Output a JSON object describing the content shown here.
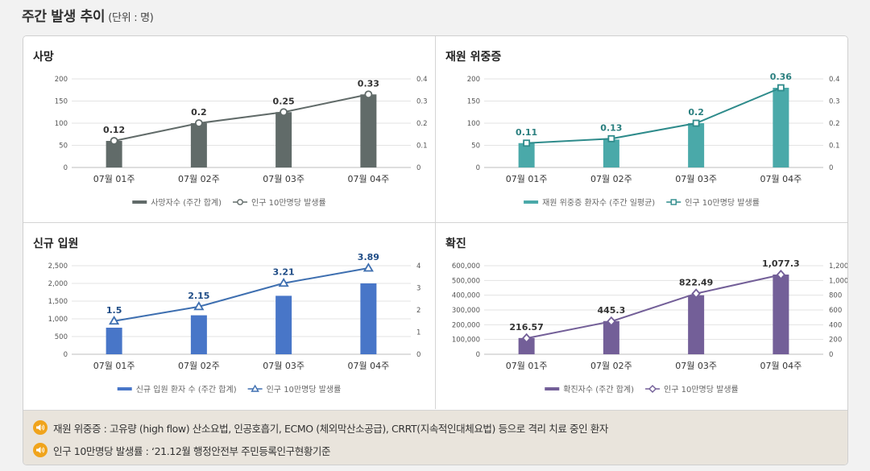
{
  "page": {
    "title": "주간 발생 추이",
    "unit": "(단위 : 명)"
  },
  "chart_data": [
    {
      "id": "deaths",
      "title": "사망",
      "type": "bar+line",
      "categories": [
        "07월 01주",
        "07월 02주",
        "07월 03주",
        "07월 04주"
      ],
      "bar": {
        "name": "사망자수 (주간 합계)",
        "values": [
          60,
          100,
          125,
          165
        ],
        "color": "#616b69"
      },
      "line": {
        "name": "인구 10만명당 발생률",
        "values": [
          0.12,
          0.2,
          0.25,
          0.33
        ],
        "labels": [
          "0.12",
          "0.2",
          "0.25",
          "0.33"
        ],
        "color": "#616b69",
        "label_color": "#333333",
        "marker": "circle"
      },
      "y_left": {
        "min": 0,
        "max": 200,
        "ticks": [
          "0",
          "50",
          "100",
          "150",
          "200"
        ]
      },
      "y_right": {
        "min": 0,
        "max": 0.4,
        "ticks": [
          "0",
          "0.1",
          "0.2",
          "0.3",
          "0.4"
        ]
      },
      "grid": true
    },
    {
      "id": "severe",
      "title": "재원 위중증",
      "type": "bar+line",
      "categories": [
        "07월 01주",
        "07월 02주",
        "07월 03주",
        "07월 04주"
      ],
      "bar": {
        "name": "재원 위중증 환자수 (주간 일평균)",
        "values": [
          55,
          63,
          100,
          180
        ],
        "color": "#4aa9a9"
      },
      "line": {
        "name": "인구 10만명당 발생률",
        "values": [
          0.11,
          0.13,
          0.2,
          0.36
        ],
        "labels": [
          "0.11",
          "0.13",
          "0.2",
          "0.36"
        ],
        "color": "#2e8b8b",
        "label_color": "#2a7f7f",
        "marker": "square"
      },
      "y_left": {
        "min": 0,
        "max": 200,
        "ticks": [
          "0",
          "50",
          "100",
          "150",
          "200"
        ]
      },
      "y_right": {
        "min": 0,
        "max": 0.4,
        "ticks": [
          "0",
          "0.1",
          "0.2",
          "0.3",
          "0.4"
        ]
      },
      "grid": true
    },
    {
      "id": "admissions",
      "title": "신규 입원",
      "type": "bar+line",
      "categories": [
        "07월 01주",
        "07월 02주",
        "07월 03주",
        "07월 04주"
      ],
      "bar": {
        "name": "신규 입원 환자 수 (주간 합계)",
        "values": [
          750,
          1100,
          1650,
          2000
        ],
        "color": "#4876c8"
      },
      "line": {
        "name": "인구 10만명당 발생률",
        "values": [
          1.5,
          2.15,
          3.21,
          3.89
        ],
        "labels": [
          "1.5",
          "2.15",
          "3.21",
          "3.89"
        ],
        "color": "#3e6fb0",
        "label_color": "#1f4c86",
        "marker": "triangle"
      },
      "y_left": {
        "min": 0,
        "max": 2500,
        "ticks": [
          "0",
          "500",
          "1,000",
          "1,500",
          "2,000",
          "2,500"
        ]
      },
      "y_right": {
        "min": 0,
        "max": 4,
        "ticks": [
          "0",
          "1",
          "2",
          "3",
          "4"
        ]
      },
      "grid": true
    },
    {
      "id": "confirmed",
      "title": "확진",
      "type": "bar+line",
      "categories": [
        "07월 01주",
        "07월 02주",
        "07월 03주",
        "07월 04주"
      ],
      "bar": {
        "name": "확진자수 (주간 합계)",
        "values": [
          110000,
          225000,
          400000,
          540000
        ],
        "color": "#735f98"
      },
      "line": {
        "name": "인구 10만명당 발생률",
        "values": [
          216.57,
          445.3,
          822.49,
          1077.3
        ],
        "labels": [
          "216.57",
          "445.3",
          "822.49",
          "1,077.3"
        ],
        "color": "#735f98",
        "label_color": "#333333",
        "marker": "diamond"
      },
      "y_left": {
        "min": 0,
        "max": 600000,
        "ticks": [
          "0",
          "100,000",
          "200,000",
          "300,000",
          "400,000",
          "500,000",
          "600,000"
        ]
      },
      "y_right": {
        "min": 0,
        "max": 1200,
        "ticks": [
          "0",
          "200",
          "400",
          "600",
          "800",
          "1,000",
          "1,200"
        ]
      },
      "grid": true
    }
  ],
  "notes": [
    {
      "icon": "speaker-icon",
      "text": "재원 위중증 : 고유량 (high flow) 산소요법, 인공호흡기, ECMO (체외막산소공급), CRRT(지속적인대체요법) 등으로 격리 치료 중인 환자"
    },
    {
      "icon": "speaker-icon",
      "text": "인구 10만명당 발생률 : ‘21.12월 행정안전부 주민등록인구현황기준"
    }
  ]
}
